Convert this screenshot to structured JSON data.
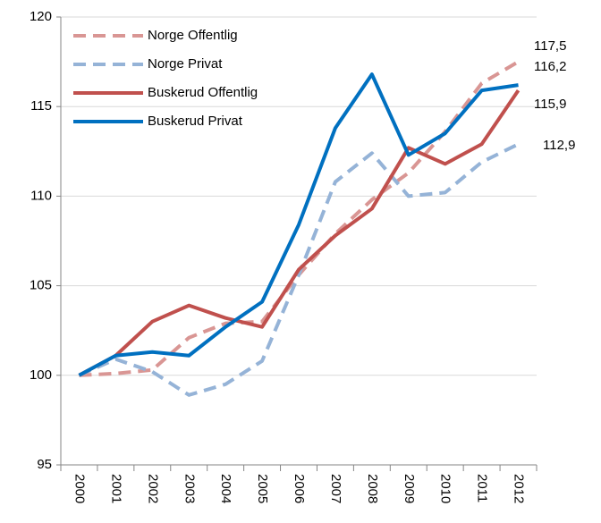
{
  "chart_data": {
    "type": "line",
    "categories": [
      "2000",
      "2001",
      "2002",
      "2003",
      "2004",
      "2005",
      "2006",
      "2007",
      "2008",
      "2009",
      "2010",
      "2011",
      "2012"
    ],
    "ylim": [
      95,
      120
    ],
    "yticks": [
      95,
      100,
      105,
      110,
      115,
      120
    ],
    "grid": true,
    "legend": "top-left",
    "series": [
      {
        "name": "Norge  Offentlig",
        "color": "#d99694",
        "dash": true,
        "values": [
          100,
          100.1,
          100.3,
          102.1,
          102.9,
          103.0,
          105.6,
          107.9,
          109.8,
          111.3,
          113.6,
          116.3,
          117.5
        ],
        "value_labels": [
          null,
          null,
          null,
          null,
          null,
          null,
          null,
          null,
          null,
          null,
          null,
          null,
          "117,5"
        ]
      },
      {
        "name": "Norge Privat",
        "color": "#95b3d7",
        "dash": true,
        "values": [
          100,
          100.9,
          100.2,
          98.9,
          99.5,
          100.8,
          105.6,
          110.8,
          112.4,
          110.0,
          110.2,
          111.9,
          112.9
        ],
        "value_labels": [
          null,
          null,
          null,
          null,
          null,
          null,
          null,
          null,
          null,
          null,
          null,
          null,
          "112,9"
        ]
      },
      {
        "name": "Buskerud Offentlig",
        "color": "#c0504d",
        "dash": false,
        "values": [
          100,
          101.1,
          103.0,
          103.9,
          103.2,
          102.7,
          105.9,
          107.8,
          109.3,
          112.7,
          111.8,
          112.9,
          115.9
        ],
        "value_labels": [
          null,
          null,
          null,
          null,
          null,
          null,
          null,
          null,
          null,
          null,
          null,
          null,
          "115,9"
        ]
      },
      {
        "name": "Buskerud Privat",
        "color": "#0070c0",
        "dash": false,
        "values": [
          100,
          101.1,
          101.3,
          101.1,
          102.7,
          104.1,
          108.4,
          113.8,
          116.8,
          112.3,
          113.5,
          115.9,
          116.2
        ],
        "value_labels": [
          null,
          null,
          null,
          null,
          null,
          null,
          null,
          null,
          null,
          null,
          null,
          null,
          "116,2"
        ]
      }
    ]
  }
}
